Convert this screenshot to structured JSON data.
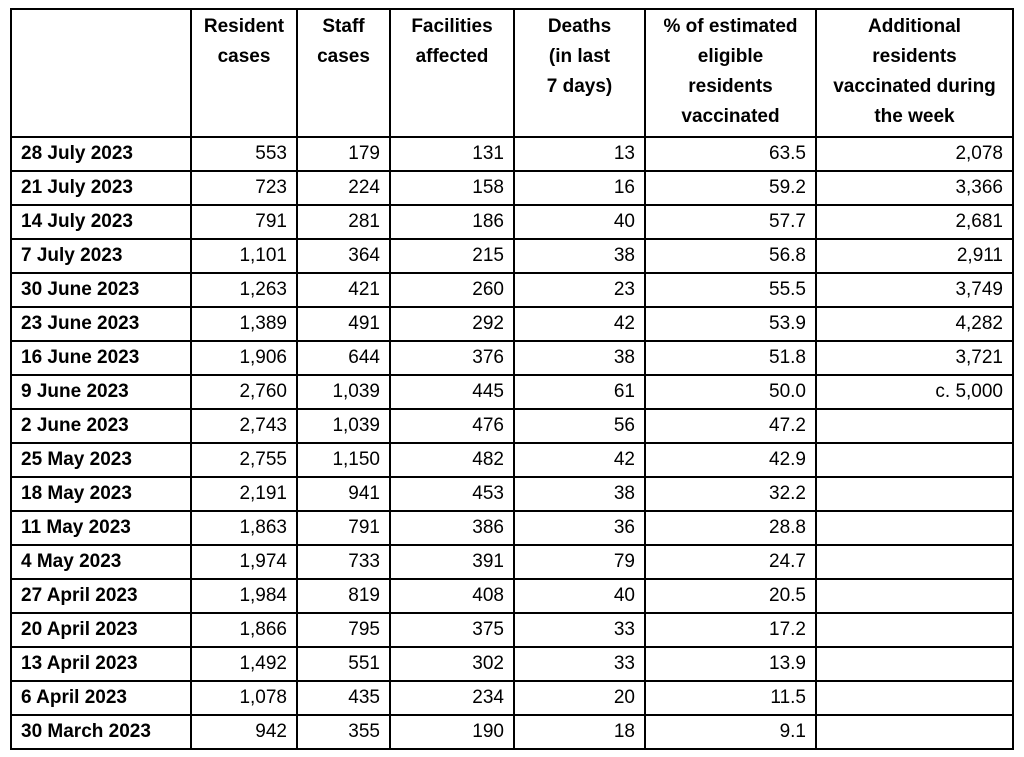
{
  "table": {
    "headers": [
      "",
      "Resident\ncases",
      "Staff\ncases",
      "Facilities\naffected",
      "Deaths\n(in last\n7 days)",
      "% of estimated\neligible\nresidents\nvaccinated",
      "Additional\nresidents\nvaccinated during\nthe week"
    ],
    "column_keys": [
      "resident-cases",
      "staff-cases",
      "facilities-affected",
      "deaths-last-7-days",
      "pct-eligible-residents-vaccinated",
      "additional-residents-vaccinated"
    ],
    "rows": [
      {
        "date": "28 July 2023",
        "values": [
          "553",
          "179",
          "131",
          "13",
          "63.5",
          "2,078"
        ]
      },
      {
        "date": "21 July 2023",
        "values": [
          "723",
          "224",
          "158",
          "16",
          "59.2",
          "3,366"
        ]
      },
      {
        "date": "14 July 2023",
        "values": [
          "791",
          "281",
          "186",
          "40",
          "57.7",
          "2,681"
        ]
      },
      {
        "date": "7 July 2023",
        "values": [
          "1,101",
          "364",
          "215",
          "38",
          "56.8",
          "2,911"
        ]
      },
      {
        "date": "30 June 2023",
        "values": [
          "1,263",
          "421",
          "260",
          "23",
          "55.5",
          "3,749"
        ]
      },
      {
        "date": "23 June 2023",
        "values": [
          "1,389",
          "491",
          "292",
          "42",
          "53.9",
          "4,282"
        ]
      },
      {
        "date": "16 June 2023",
        "values": [
          "1,906",
          "644",
          "376",
          "38",
          "51.8",
          "3,721"
        ]
      },
      {
        "date": "9 June 2023",
        "values": [
          "2,760",
          "1,039",
          "445",
          "61",
          "50.0",
          "c. 5,000"
        ]
      },
      {
        "date": "2 June 2023",
        "values": [
          "2,743",
          "1,039",
          "476",
          "56",
          "47.2",
          ""
        ]
      },
      {
        "date": "25 May 2023",
        "values": [
          "2,755",
          "1,150",
          "482",
          "42",
          "42.9",
          ""
        ]
      },
      {
        "date": "18 May 2023",
        "values": [
          "2,191",
          "941",
          "453",
          "38",
          "32.2",
          ""
        ]
      },
      {
        "date": "11 May 2023",
        "values": [
          "1,863",
          "791",
          "386",
          "36",
          "28.8",
          ""
        ]
      },
      {
        "date": "4 May 2023",
        "values": [
          "1,974",
          "733",
          "391",
          "79",
          "24.7",
          ""
        ]
      },
      {
        "date": "27 April 2023",
        "values": [
          "1,984",
          "819",
          "408",
          "40",
          "20.5",
          ""
        ]
      },
      {
        "date": "20 April 2023",
        "values": [
          "1,866",
          "795",
          "375",
          "33",
          "17.2",
          ""
        ]
      },
      {
        "date": "13 April 2023",
        "values": [
          "1,492",
          "551",
          "302",
          "33",
          "13.9",
          ""
        ]
      },
      {
        "date": "6 April 2023",
        "values": [
          "1,078",
          "435",
          "234",
          "20",
          "11.5",
          ""
        ]
      },
      {
        "date": "30 March 2023",
        "values": [
          "942",
          "355",
          "190",
          "18",
          "9.1",
          ""
        ]
      }
    ]
  },
  "chart_data": {
    "type": "table",
    "columns": [
      "",
      "Resident cases",
      "Staff cases",
      "Facilities affected",
      "Deaths (in last 7 days)",
      "% of estimated eligible residents vaccinated",
      "Additional residents vaccinated during the week"
    ],
    "rows": [
      [
        "28 July 2023",
        553,
        179,
        131,
        13,
        63.5,
        2078
      ],
      [
        "21 July 2023",
        723,
        224,
        158,
        16,
        59.2,
        3366
      ],
      [
        "14 July 2023",
        791,
        281,
        186,
        40,
        57.7,
        2681
      ],
      [
        "7 July 2023",
        1101,
        364,
        215,
        38,
        56.8,
        2911
      ],
      [
        "30 June 2023",
        1263,
        421,
        260,
        23,
        55.5,
        3749
      ],
      [
        "23 June 2023",
        1389,
        491,
        292,
        42,
        53.9,
        4282
      ],
      [
        "16 June 2023",
        1906,
        644,
        376,
        38,
        51.8,
        3721
      ],
      [
        "9 June 2023",
        2760,
        1039,
        445,
        61,
        50.0,
        "c. 5,000"
      ],
      [
        "2 June 2023",
        2743,
        1039,
        476,
        56,
        47.2,
        null
      ],
      [
        "25 May 2023",
        2755,
        1150,
        482,
        42,
        42.9,
        null
      ],
      [
        "18 May 2023",
        2191,
        941,
        453,
        38,
        32.2,
        null
      ],
      [
        "11 May 2023",
        1863,
        791,
        386,
        36,
        28.8,
        null
      ],
      [
        "4 May 2023",
        1974,
        733,
        391,
        79,
        24.7,
        null
      ],
      [
        "27 April 2023",
        1984,
        819,
        408,
        40,
        20.5,
        null
      ],
      [
        "20 April 2023",
        1866,
        795,
        375,
        33,
        17.2,
        null
      ],
      [
        "13 April 2023",
        1492,
        551,
        302,
        33,
        13.9,
        null
      ],
      [
        "6 April 2023",
        1078,
        435,
        234,
        20,
        11.5,
        null
      ],
      [
        "30 March 2023",
        942,
        355,
        190,
        18,
        9.1,
        null
      ]
    ]
  }
}
